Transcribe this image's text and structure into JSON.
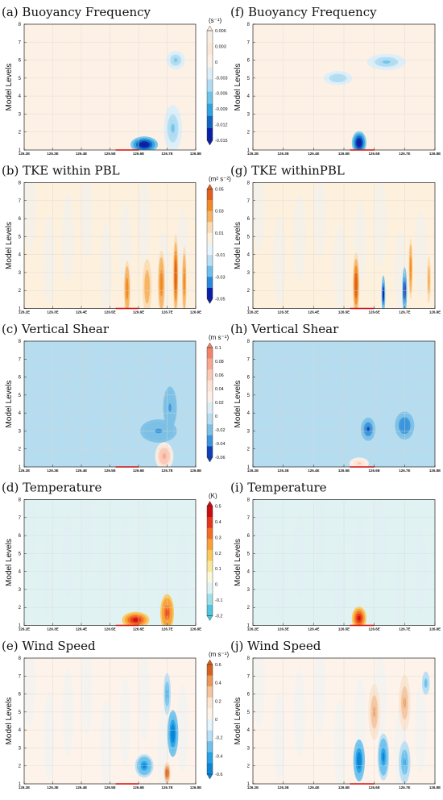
{
  "chart_data": {
    "type": "heatmap",
    "x_ticks": [
      "126.2E",
      "126.3E",
      "126.4E",
      "126.5E",
      "126.6E",
      "126.7E",
      "126.8E"
    ],
    "y_ticks": [
      "1",
      "2",
      "3",
      "4",
      "5",
      "6",
      "7",
      "8"
    ],
    "xlim": [
      126.2,
      126.8
    ],
    "ylim": [
      1,
      8
    ],
    "ylabel": "Model Levels",
    "rows": [
      {
        "unit": "(s⁻¹)",
        "colorbar_ticks": [
          "0.006",
          "0.003",
          "0",
          "-0.003",
          "-0.006",
          "-0.009",
          "-0.012",
          "-0.015"
        ],
        "colorbar_colors": [
          "#f7ede3",
          "#fbe7d6",
          "#fdf1e6",
          "#dbeef8",
          "#aedcf2",
          "#6ec3ea",
          "#2fa3df",
          "#1565c0",
          "#0a1fa8"
        ],
        "left": {
          "title": "(a) Buoyancy Frequency",
          "features": [
            {
              "x": 126.62,
              "y": 1.3,
              "value": -0.015,
              "sx": 0.03,
              "sy": 0.35
            },
            {
              "x": 126.72,
              "y": 2.2,
              "value": -0.006,
              "sx": 0.02,
              "sy": 1.0
            },
            {
              "x": 126.73,
              "y": 6.0,
              "value": -0.006,
              "sx": 0.02,
              "sy": 0.4
            }
          ]
        },
        "right": {
          "title": "(f) Buoyancy Frequency",
          "features": [
            {
              "x": 126.55,
              "y": 1.4,
              "value": -0.015,
              "sx": 0.015,
              "sy": 0.5
            },
            {
              "x": 126.64,
              "y": 5.9,
              "value": -0.006,
              "sx": 0.04,
              "sy": 0.35
            },
            {
              "x": 126.48,
              "y": 5.0,
              "value": -0.005,
              "sx": 0.03,
              "sy": 0.3
            }
          ]
        }
      },
      {
        "unit": "(m² s⁻²)",
        "colorbar_ticks": [
          "0.05",
          "0.03",
          "0.01",
          "-0.01",
          "-0.03",
          "-0.05"
        ],
        "colorbar_colors": [
          "#e0601e",
          "#f08a24",
          "#f6b463",
          "#fbdcb2",
          "#fdf0dd",
          "#e8f4fb",
          "#b9dff4",
          "#6fbfeb",
          "#2b86dd",
          "#0a1fa8"
        ],
        "left": {
          "title": "(b) TKE within PBL",
          "features": [
            {
              "x": 126.56,
              "y": 2.1,
              "value": 0.04,
              "sx": 0.007,
              "sy": 1.2
            },
            {
              "x": 126.63,
              "y": 2.2,
              "value": 0.03,
              "sx": 0.01,
              "sy": 1.2
            },
            {
              "x": 126.68,
              "y": 2.4,
              "value": 0.04,
              "sx": 0.008,
              "sy": 1.4
            },
            {
              "x": 126.73,
              "y": 2.8,
              "value": 0.05,
              "sx": 0.006,
              "sy": 1.8
            },
            {
              "x": 126.76,
              "y": 2.5,
              "value": 0.04,
              "sx": 0.005,
              "sy": 1.5
            }
          ]
        },
        "right": {
          "title": "(g) TKE withinPBL",
          "features": [
            {
              "x": 126.54,
              "y": 2.3,
              "value": 0.05,
              "sx": 0.007,
              "sy": 1.4
            },
            {
              "x": 126.63,
              "y": 1.8,
              "value": -0.05,
              "sx": 0.004,
              "sy": 0.8
            },
            {
              "x": 126.7,
              "y": 2.0,
              "value": -0.05,
              "sx": 0.005,
              "sy": 1.0
            },
            {
              "x": 126.72,
              "y": 3.2,
              "value": 0.04,
              "sx": 0.004,
              "sy": 1.3
            },
            {
              "x": 126.78,
              "y": 2.6,
              "value": 0.03,
              "sx": 0.004,
              "sy": 1.0
            }
          ]
        }
      },
      {
        "unit": "(m s⁻¹)",
        "colorbar_ticks": [
          "0.1",
          "0.08",
          "0.06",
          "0.04",
          "0.02",
          "0",
          "-0.02",
          "-0.04",
          "-0.06"
        ],
        "colorbar_colors": [
          "#f2836b",
          "#f7a890",
          "#fbc8b4",
          "#fde3d5",
          "#fdf0e6",
          "#dcedf6",
          "#b6dcef",
          "#7cc0e6",
          "#3a95dc",
          "#1040b8"
        ],
        "left": {
          "title": "(c) Vertical Shear",
          "features": [
            {
              "x": 126.67,
              "y": 3.0,
              "value": -0.03,
              "sx": 0.04,
              "sy": 0.5
            },
            {
              "x": 126.71,
              "y": 4.3,
              "value": -0.03,
              "sx": 0.015,
              "sy": 0.9
            },
            {
              "x": 126.69,
              "y": 1.6,
              "value": 0.08,
              "sx": 0.02,
              "sy": 0.6
            }
          ]
        },
        "right": {
          "title": "(h) Vertical Shear",
          "features": [
            {
              "x": 126.58,
              "y": 3.1,
              "value": -0.05,
              "sx": 0.015,
              "sy": 0.5
            },
            {
              "x": 126.7,
              "y": 3.3,
              "value": -0.04,
              "sx": 0.02,
              "sy": 0.6
            },
            {
              "x": 126.55,
              "y": 1.2,
              "value": 0.06,
              "sx": 0.02,
              "sy": 0.25
            }
          ]
        }
      },
      {
        "unit": "(K)",
        "colorbar_ticks": [
          "0.5",
          "0.4",
          "0.3",
          "0.2",
          "0.1",
          "0",
          "-0.1",
          "-0.2"
        ],
        "colorbar_colors": [
          "#c90d10",
          "#e5361c",
          "#f36b24",
          "#f7a138",
          "#f9c95b",
          "#fbe79a",
          "#fcf8dc",
          "#e1f2f3",
          "#9edfe8",
          "#4ec6e0"
        ],
        "left": {
          "title": "(d) Temperature",
          "features": [
            {
              "x": 126.59,
              "y": 1.3,
              "value": 0.5,
              "sx": 0.03,
              "sy": 0.35
            },
            {
              "x": 126.7,
              "y": 1.7,
              "value": 0.4,
              "sx": 0.015,
              "sy": 0.8
            }
          ]
        },
        "right": {
          "title": "(i) Temperature",
          "features": [
            {
              "x": 126.55,
              "y": 1.4,
              "value": 0.5,
              "sx": 0.015,
              "sy": 0.5
            }
          ]
        }
      },
      {
        "unit": "(m s⁻¹)",
        "colorbar_ticks": [
          "0.6",
          "0.4",
          "0.2",
          "0",
          "-0.2",
          "-0.4",
          "-0.6"
        ],
        "colorbar_colors": [
          "#d4621e",
          "#eb9856",
          "#f5c49d",
          "#fbe4d0",
          "#fdf3ea",
          "#e6f3fb",
          "#b6def4",
          "#6dc1ec",
          "#25a2e3",
          "#0a84d6"
        ],
        "left": {
          "title": "(e) Wind Speed",
          "features": [
            {
              "x": 126.62,
              "y": 2.0,
              "value": -0.5,
              "sx": 0.02,
              "sy": 0.5
            },
            {
              "x": 126.72,
              "y": 3.8,
              "value": -0.6,
              "sx": 0.012,
              "sy": 1.0
            },
            {
              "x": 126.7,
              "y": 6.0,
              "value": -0.4,
              "sx": 0.008,
              "sy": 0.9
            },
            {
              "x": 126.7,
              "y": 1.6,
              "value": 0.6,
              "sx": 0.008,
              "sy": 0.5
            }
          ]
        },
        "right": {
          "title": "(j) Wind Speed",
          "features": [
            {
              "x": 126.55,
              "y": 2.3,
              "value": -0.6,
              "sx": 0.012,
              "sy": 0.9
            },
            {
              "x": 126.63,
              "y": 2.5,
              "value": -0.5,
              "sx": 0.012,
              "sy": 1.0
            },
            {
              "x": 126.7,
              "y": 2.2,
              "value": -0.4,
              "sx": 0.012,
              "sy": 0.9
            },
            {
              "x": 126.6,
              "y": 5.0,
              "value": 0.4,
              "sx": 0.012,
              "sy": 1.2
            },
            {
              "x": 126.7,
              "y": 5.5,
              "value": 0.4,
              "sx": 0.012,
              "sy": 1.2
            },
            {
              "x": 126.77,
              "y": 6.6,
              "value": -0.3,
              "sx": 0.008,
              "sy": 0.5
            }
          ]
        }
      }
    ]
  }
}
